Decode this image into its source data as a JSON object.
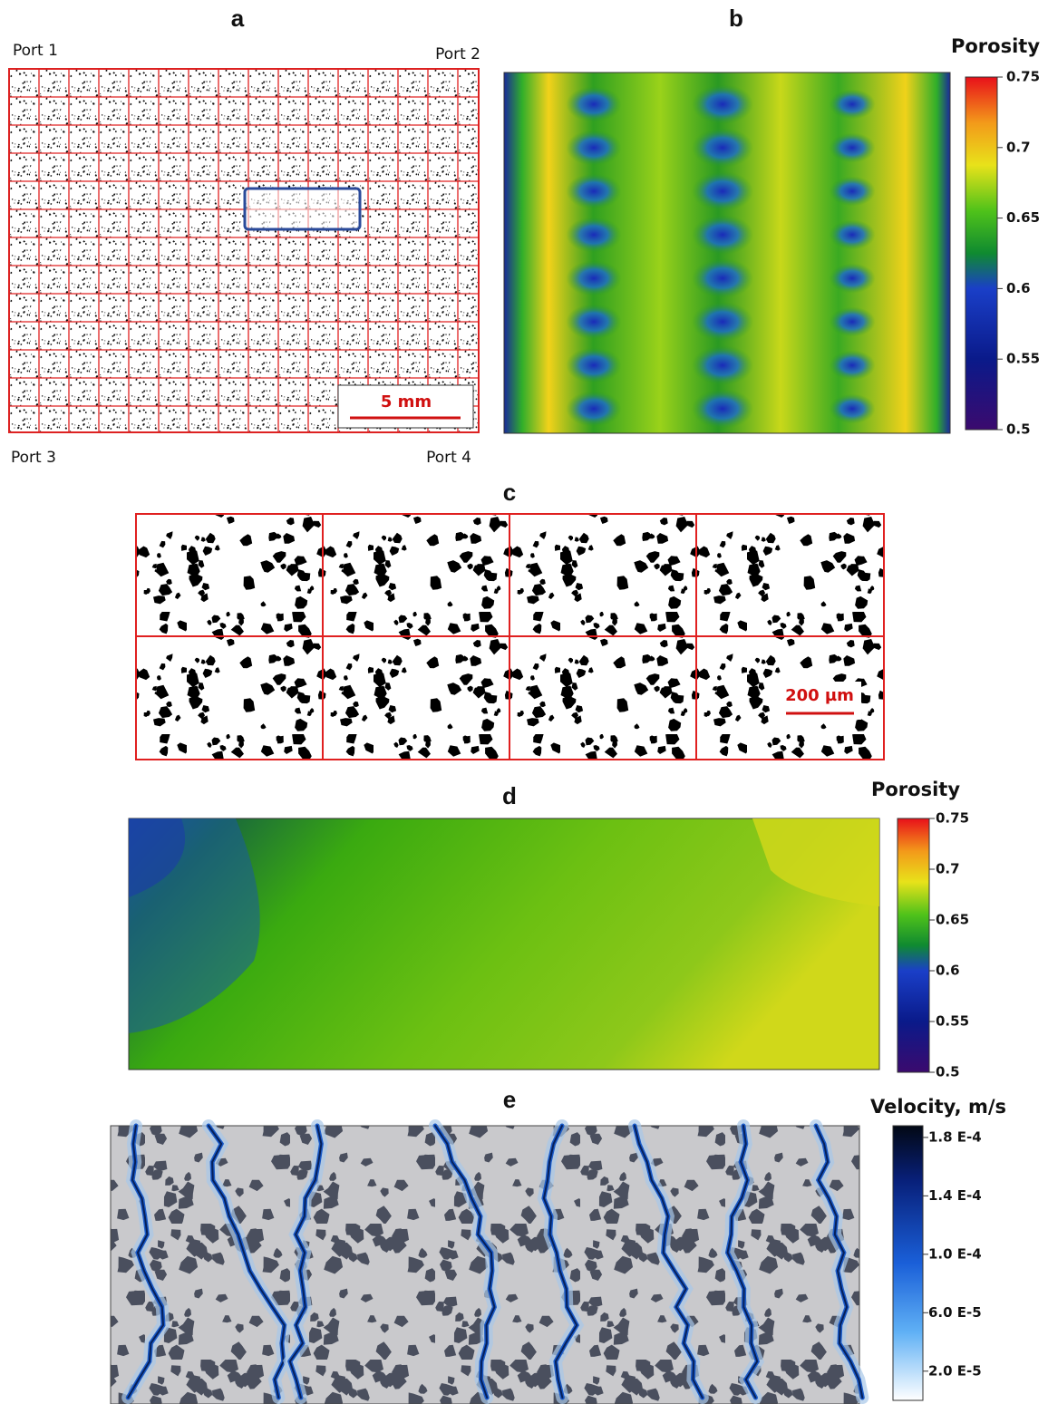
{
  "panels": [
    {
      "label": "a",
      "ports": [
        "Port 1",
        "Port 2",
        "Port 3",
        "Port 4"
      ],
      "scale_bar": "5 mm"
    },
    {
      "label": "b",
      "colorbar": {
        "title": "Porosity",
        "lim": [
          0.5,
          0.75
        ],
        "ticks": [
          0.5,
          0.55,
          0.6,
          0.65,
          0.7,
          0.75
        ]
      }
    },
    {
      "label": "c",
      "scale_bar": "200 µm"
    },
    {
      "label": "d",
      "colorbar": {
        "title": "Porosity",
        "lim": [
          0.5,
          0.75
        ],
        "ticks": [
          0.5,
          0.55,
          0.6,
          0.65,
          0.7,
          0.75
        ]
      }
    },
    {
      "label": "e",
      "colorbar": {
        "title": "Velocity, m/s",
        "lim": [
          0,
          0.000188
        ],
        "ticks": [
          {
            "value": 2e-05,
            "label": "2.0 E-5"
          },
          {
            "value": 6e-05,
            "label": "6.0 E-5"
          },
          {
            "value": 0.0001,
            "label": "1.0 E-4"
          },
          {
            "value": 0.00014,
            "label": "1.4 E-4"
          },
          {
            "value": 0.00018,
            "label": "1.8 E-4"
          }
        ]
      }
    }
  ]
}
